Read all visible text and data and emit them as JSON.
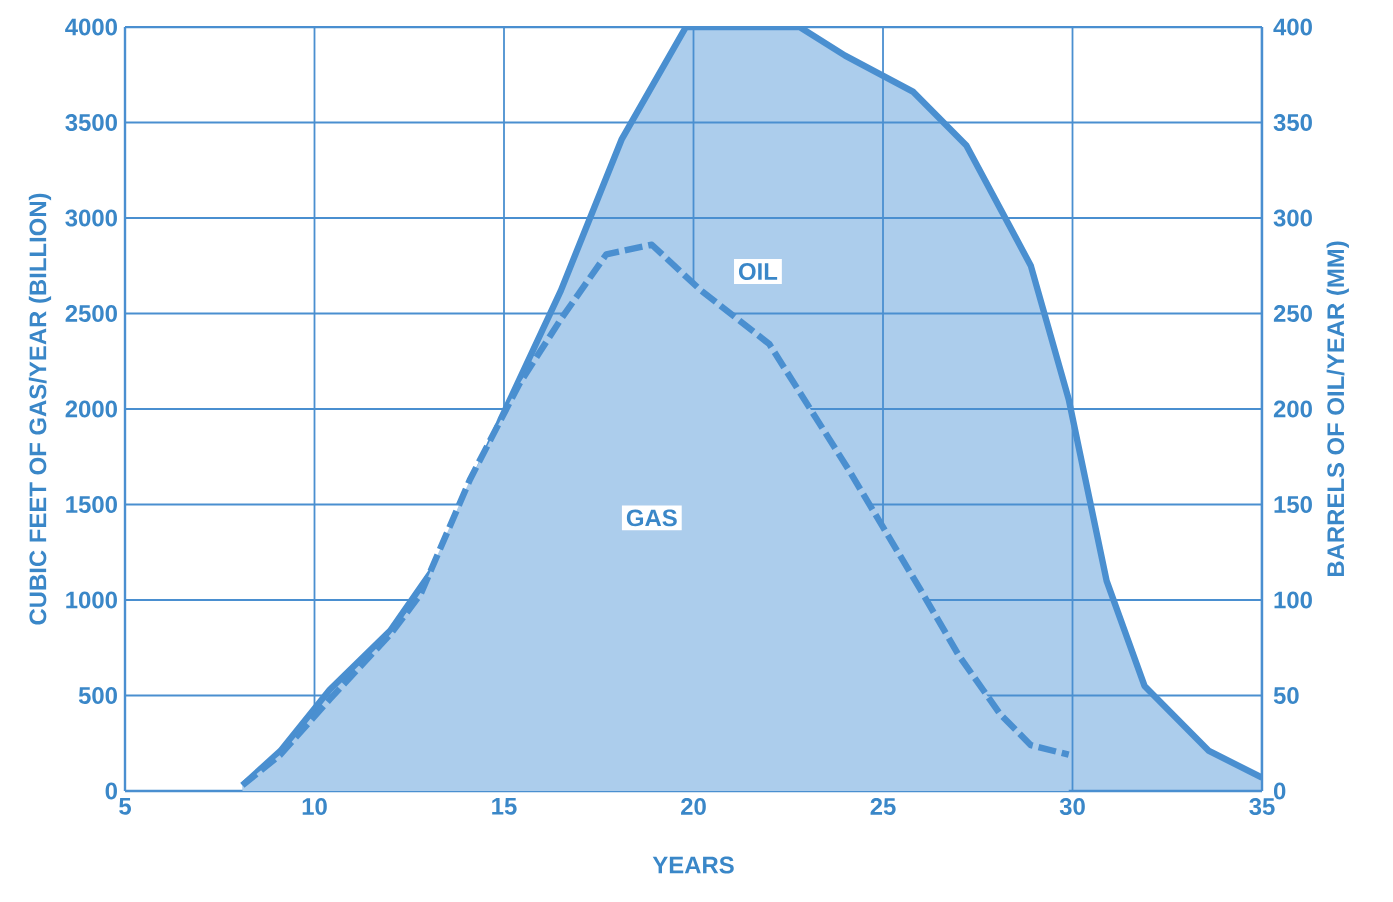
{
  "chart_data": {
    "type": "area",
    "xlabel": "YEARS",
    "ylabel": "CUBIC FEET OF GAS/YEAR (BILLION)",
    "y2label": "BARRELS OF OIL/YEAR (MM)",
    "xlim": [
      5,
      35
    ],
    "xticks": [
      5,
      10,
      15,
      20,
      25,
      30,
      35
    ],
    "ylim": [
      0,
      4000
    ],
    "yticks": [
      0,
      500,
      1000,
      1500,
      2000,
      2500,
      3000,
      3500,
      4000
    ],
    "y2lim": [
      0,
      400
    ],
    "y2ticks": [
      0,
      50,
      100,
      150,
      200,
      250,
      300,
      350,
      400
    ],
    "grid": true,
    "series": [
      {
        "name": "OIL",
        "axis": "y2",
        "color": "#4a8fd0",
        "line_style": "solid",
        "x": [
          8.1,
          9.1,
          10.4,
          12.0,
          13.3,
          14.9,
          16.5,
          18.1,
          19.8,
          22.8,
          24.0,
          25.8,
          27.2,
          28.9,
          29.9,
          30.9,
          31.9,
          33.6,
          35.0
        ],
        "values": [
          3,
          21,
          53,
          84,
          121,
          194,
          262,
          341,
          400,
          400,
          385,
          366,
          338,
          275,
          205,
          110,
          55,
          21,
          7
        ]
      },
      {
        "name": "GAS",
        "color": "#4a8fd0",
        "line_style": "dashed",
        "x": [
          8.1,
          9.1,
          10.4,
          12.0,
          12.8,
          14.1,
          15.4,
          16.5,
          17.7,
          18.9,
          20.2,
          22.0,
          24.1,
          26.0,
          27.0,
          28.1,
          28.9,
          29.9
        ],
        "values": [
          30,
          190,
          480,
          820,
          1030,
          1630,
          2130,
          2470,
          2810,
          2860,
          2620,
          2340,
          1680,
          1050,
          710,
          400,
          240,
          190
        ]
      }
    ]
  }
}
